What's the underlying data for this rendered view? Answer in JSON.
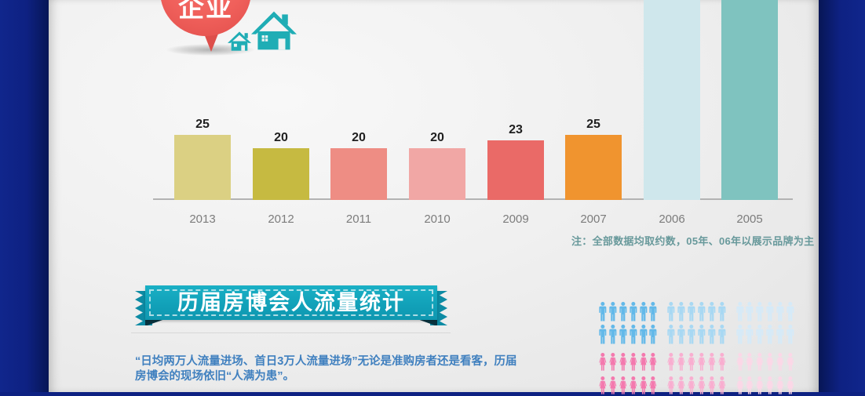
{
  "infographic": {
    "balloon_label": "企业",
    "section_title": "历届房博会人流量统计",
    "paragraph": "“日均两万人流量进场、首日3万人流量进场”无论是准购房者还是看客，历届房博会的现场依旧“人满为患”。"
  },
  "colors": {
    "side_band_blue": "#0e2182",
    "house_teal": "#1fadb5",
    "balloon_red": "#f0605b",
    "ribbon_teal": "#11a0b8",
    "ribbon_tail_teal": "#0d8ba4",
    "note_teal": "#68999b",
    "paragraph_blue": "#4080bf",
    "axis_gray": "#b3b3b3",
    "year_label_gray": "#7c7c7c"
  },
  "chart_data": {
    "type": "bar",
    "categories": [
      "2013",
      "2012",
      "2011",
      "2010",
      "2009",
      "2007",
      "2006",
      "2005"
    ],
    "values": [
      25,
      20,
      20,
      20,
      23,
      25,
      null,
      null
    ],
    "value_labels": [
      "25",
      "20",
      "20",
      "20",
      "23",
      "25",
      "",
      ""
    ],
    "colors": [
      "#dbd083",
      "#c6ba41",
      "#ee8d84",
      "#f1a7a5",
      "#ea6a67",
      "#f0942f",
      "#cfe7ec",
      "#7fc3bf"
    ],
    "clipped_at_top": [
      false,
      false,
      false,
      false,
      false,
      false,
      true,
      true
    ],
    "title": "",
    "xlabel": "",
    "ylabel": "",
    "note": "注：全部数据均取约数，05年、06年以展示品牌为主",
    "legend": "none",
    "grid": false
  },
  "pictograph": {
    "rows": [
      {
        "gender": "male",
        "groups": [
          {
            "count": 6,
            "color": "#63b9e9"
          },
          {
            "count": 6,
            "color": "#a8d8f3"
          },
          {
            "count": 6,
            "color": "#d5eaf8"
          }
        ]
      },
      {
        "gender": "male",
        "groups": [
          {
            "count": 6,
            "color": "#63b9e9"
          },
          {
            "count": 6,
            "color": "#a8d8f3"
          },
          {
            "count": 6,
            "color": "#d5eaf8"
          }
        ]
      },
      {
        "gender": "female",
        "groups": [
          {
            "count": 6,
            "color": "#f479ae"
          },
          {
            "count": 6,
            "color": "#f9aed0"
          },
          {
            "count": 6,
            "color": "#fcd7e7"
          }
        ]
      },
      {
        "gender": "female",
        "groups": [
          {
            "count": 6,
            "color": "#f479ae"
          },
          {
            "count": 6,
            "color": "#f9aed0"
          },
          {
            "count": 6,
            "color": "#fcd7e7"
          }
        ]
      }
    ]
  }
}
